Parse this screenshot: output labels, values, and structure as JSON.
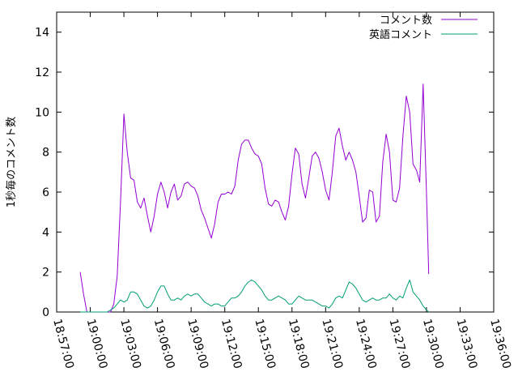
{
  "chart_data": {
    "type": "line",
    "ylabel": "1秒毎のコメント数",
    "ylim": [
      0,
      15
    ],
    "yticks": [
      "0",
      "2",
      "4",
      "6",
      "8",
      "10",
      "12",
      "14"
    ],
    "ytick_values": [
      0,
      2,
      4,
      6,
      8,
      10,
      12,
      14
    ],
    "xlim": [
      "18:57:00",
      "19:36:00"
    ],
    "xticks": [
      "18:57:00",
      "19:00:00",
      "19:03:00",
      "19:06:00",
      "19:09:00",
      "19:12:00",
      "19:15:00",
      "19:18:00",
      "19:21:00",
      "19:24:00",
      "19:27:00",
      "19:30:00",
      "19:33:00",
      "19:36:00"
    ],
    "grid": false,
    "legend_position": "top-right",
    "series": [
      {
        "name": "コメント数",
        "color": "#9400d3",
        "points": [
          [
            "18:59:06",
            2.0
          ],
          [
            "18:59:24",
            0.9
          ],
          [
            "18:59:42",
            0.0
          ],
          [
            "19:00:00",
            0.0
          ],
          [
            "19:00:18",
            0.0
          ],
          [
            "19:00:36",
            0.0
          ],
          [
            "19:00:54",
            0.0
          ],
          [
            "19:01:12",
            0.0
          ],
          [
            "19:01:30",
            0.0
          ],
          [
            "19:01:48",
            0.0
          ],
          [
            "19:02:06",
            0.4
          ],
          [
            "19:02:24",
            1.8
          ],
          [
            "19:02:42",
            5.5
          ],
          [
            "19:03:00",
            9.9
          ],
          [
            "19:03:18",
            8.0
          ],
          [
            "19:03:36",
            6.7
          ],
          [
            "19:03:54",
            6.6
          ],
          [
            "19:04:12",
            5.5
          ],
          [
            "19:04:30",
            5.2
          ],
          [
            "19:04:48",
            5.7
          ],
          [
            "19:05:06",
            4.8
          ],
          [
            "19:05:24",
            4.0
          ],
          [
            "19:05:42",
            4.8
          ],
          [
            "19:06:00",
            5.9
          ],
          [
            "19:06:18",
            6.5
          ],
          [
            "19:06:36",
            6.0
          ],
          [
            "19:06:54",
            5.2
          ],
          [
            "19:07:12",
            6.0
          ],
          [
            "19:07:30",
            6.4
          ],
          [
            "19:07:48",
            5.6
          ],
          [
            "19:08:06",
            5.8
          ],
          [
            "19:08:24",
            6.4
          ],
          [
            "19:08:42",
            6.5
          ],
          [
            "19:09:00",
            6.3
          ],
          [
            "19:09:18",
            6.2
          ],
          [
            "19:09:36",
            5.8
          ],
          [
            "19:09:54",
            5.1
          ],
          [
            "19:10:12",
            4.7
          ],
          [
            "19:10:30",
            4.2
          ],
          [
            "19:10:48",
            3.7
          ],
          [
            "19:11:06",
            4.4
          ],
          [
            "19:11:24",
            5.5
          ],
          [
            "19:11:42",
            5.9
          ],
          [
            "19:12:00",
            5.9
          ],
          [
            "19:12:18",
            6.0
          ],
          [
            "19:12:36",
            5.9
          ],
          [
            "19:12:54",
            6.3
          ],
          [
            "19:13:12",
            7.6
          ],
          [
            "19:13:30",
            8.4
          ],
          [
            "19:13:48",
            8.6
          ],
          [
            "19:14:06",
            8.6
          ],
          [
            "19:14:24",
            8.2
          ],
          [
            "19:14:42",
            7.9
          ],
          [
            "19:15:00",
            7.8
          ],
          [
            "19:15:18",
            7.4
          ],
          [
            "19:15:36",
            6.2
          ],
          [
            "19:15:54",
            5.4
          ],
          [
            "19:16:12",
            5.3
          ],
          [
            "19:16:30",
            5.6
          ],
          [
            "19:16:48",
            5.5
          ],
          [
            "19:17:06",
            5.0
          ],
          [
            "19:17:24",
            4.6
          ],
          [
            "19:17:42",
            5.3
          ],
          [
            "19:18:00",
            6.9
          ],
          [
            "19:18:18",
            8.2
          ],
          [
            "19:18:36",
            7.9
          ],
          [
            "19:18:54",
            6.4
          ],
          [
            "19:19:12",
            5.7
          ],
          [
            "19:19:30",
            6.7
          ],
          [
            "19:19:48",
            7.8
          ],
          [
            "19:20:06",
            8.0
          ],
          [
            "19:20:24",
            7.7
          ],
          [
            "19:20:42",
            7.0
          ],
          [
            "19:21:00",
            6.1
          ],
          [
            "19:21:18",
            5.6
          ],
          [
            "19:21:36",
            7.0
          ],
          [
            "19:21:54",
            8.8
          ],
          [
            "19:22:12",
            9.2
          ],
          [
            "19:22:30",
            8.3
          ],
          [
            "19:22:48",
            7.6
          ],
          [
            "19:23:06",
            8.0
          ],
          [
            "19:23:24",
            7.6
          ],
          [
            "19:23:42",
            7.0
          ],
          [
            "19:24:00",
            5.8
          ],
          [
            "19:24:18",
            4.5
          ],
          [
            "19:24:36",
            4.7
          ],
          [
            "19:24:54",
            6.1
          ],
          [
            "19:25:12",
            6.0
          ],
          [
            "19:25:30",
            4.5
          ],
          [
            "19:25:48",
            4.8
          ],
          [
            "19:26:06",
            7.5
          ],
          [
            "19:26:24",
            8.9
          ],
          [
            "19:26:42",
            8.0
          ],
          [
            "19:27:00",
            5.6
          ],
          [
            "19:27:18",
            5.5
          ],
          [
            "19:27:36",
            6.2
          ],
          [
            "19:27:54",
            8.8
          ],
          [
            "19:28:12",
            10.8
          ],
          [
            "19:28:30",
            10.0
          ],
          [
            "19:28:48",
            7.4
          ],
          [
            "19:29:06",
            7.1
          ],
          [
            "19:29:24",
            6.5
          ],
          [
            "19:29:42",
            11.4
          ],
          [
            "19:30:00",
            6.0
          ],
          [
            "19:30:12",
            1.9
          ]
        ]
      },
      {
        "name": "英語コメント",
        "color": "#009e73",
        "points": [
          [
            "18:59:06",
            0.0
          ],
          [
            "18:59:42",
            0.0
          ],
          [
            "19:00:18",
            0.0
          ],
          [
            "19:00:54",
            0.0
          ],
          [
            "19:01:30",
            0.0
          ],
          [
            "19:02:06",
            0.2
          ],
          [
            "19:02:24",
            0.4
          ],
          [
            "19:02:42",
            0.6
          ],
          [
            "19:03:00",
            0.5
          ],
          [
            "19:03:18",
            0.6
          ],
          [
            "19:03:36",
            1.0
          ],
          [
            "19:03:54",
            1.0
          ],
          [
            "19:04:12",
            0.9
          ],
          [
            "19:04:30",
            0.6
          ],
          [
            "19:04:48",
            0.3
          ],
          [
            "19:05:06",
            0.2
          ],
          [
            "19:05:24",
            0.3
          ],
          [
            "19:05:42",
            0.6
          ],
          [
            "19:06:00",
            1.0
          ],
          [
            "19:06:18",
            1.3
          ],
          [
            "19:06:36",
            1.3
          ],
          [
            "19:06:54",
            0.9
          ],
          [
            "19:07:12",
            0.6
          ],
          [
            "19:07:30",
            0.6
          ],
          [
            "19:07:48",
            0.7
          ],
          [
            "19:08:06",
            0.6
          ],
          [
            "19:08:24",
            0.8
          ],
          [
            "19:08:42",
            0.9
          ],
          [
            "19:09:00",
            0.8
          ],
          [
            "19:09:18",
            0.9
          ],
          [
            "19:09:36",
            0.9
          ],
          [
            "19:09:54",
            0.7
          ],
          [
            "19:10:12",
            0.5
          ],
          [
            "19:10:30",
            0.4
          ],
          [
            "19:10:48",
            0.3
          ],
          [
            "19:11:06",
            0.4
          ],
          [
            "19:11:24",
            0.4
          ],
          [
            "19:11:42",
            0.3
          ],
          [
            "19:12:00",
            0.3
          ],
          [
            "19:12:18",
            0.5
          ],
          [
            "19:12:36",
            0.7
          ],
          [
            "19:12:54",
            0.7
          ],
          [
            "19:13:12",
            0.8
          ],
          [
            "19:13:30",
            1.0
          ],
          [
            "19:13:48",
            1.3
          ],
          [
            "19:14:06",
            1.5
          ],
          [
            "19:14:24",
            1.6
          ],
          [
            "19:14:42",
            1.5
          ],
          [
            "19:15:00",
            1.3
          ],
          [
            "19:15:18",
            1.1
          ],
          [
            "19:15:36",
            0.8
          ],
          [
            "19:15:54",
            0.6
          ],
          [
            "19:16:12",
            0.6
          ],
          [
            "19:16:30",
            0.7
          ],
          [
            "19:16:48",
            0.8
          ],
          [
            "19:17:06",
            0.7
          ],
          [
            "19:17:24",
            0.6
          ],
          [
            "19:17:42",
            0.4
          ],
          [
            "19:18:00",
            0.4
          ],
          [
            "19:18:18",
            0.6
          ],
          [
            "19:18:36",
            0.8
          ],
          [
            "19:18:54",
            0.7
          ],
          [
            "19:19:12",
            0.6
          ],
          [
            "19:19:30",
            0.6
          ],
          [
            "19:19:48",
            0.6
          ],
          [
            "19:20:06",
            0.5
          ],
          [
            "19:20:24",
            0.4
          ],
          [
            "19:20:42",
            0.3
          ],
          [
            "19:21:00",
            0.3
          ],
          [
            "19:21:18",
            0.2
          ],
          [
            "19:21:36",
            0.4
          ],
          [
            "19:21:54",
            0.7
          ],
          [
            "19:22:12",
            0.8
          ],
          [
            "19:22:30",
            0.7
          ],
          [
            "19:22:48",
            1.1
          ],
          [
            "19:23:06",
            1.5
          ],
          [
            "19:23:24",
            1.4
          ],
          [
            "19:23:42",
            1.2
          ],
          [
            "19:24:00",
            0.9
          ],
          [
            "19:24:18",
            0.6
          ],
          [
            "19:24:36",
            0.5
          ],
          [
            "19:24:54",
            0.6
          ],
          [
            "19:25:12",
            0.7
          ],
          [
            "19:25:30",
            0.6
          ],
          [
            "19:25:48",
            0.6
          ],
          [
            "19:26:06",
            0.7
          ],
          [
            "19:26:24",
            0.7
          ],
          [
            "19:26:42",
            0.9
          ],
          [
            "19:27:00",
            0.7
          ],
          [
            "19:27:18",
            0.6
          ],
          [
            "19:27:36",
            0.8
          ],
          [
            "19:27:54",
            0.7
          ],
          [
            "19:28:12",
            1.2
          ],
          [
            "19:28:30",
            1.6
          ],
          [
            "19:28:48",
            1.0
          ],
          [
            "19:29:06",
            0.8
          ],
          [
            "19:29:24",
            0.6
          ],
          [
            "19:29:42",
            0.3
          ],
          [
            "19:30:00",
            0.1
          ],
          [
            "19:30:12",
            0.0
          ]
        ]
      }
    ]
  }
}
